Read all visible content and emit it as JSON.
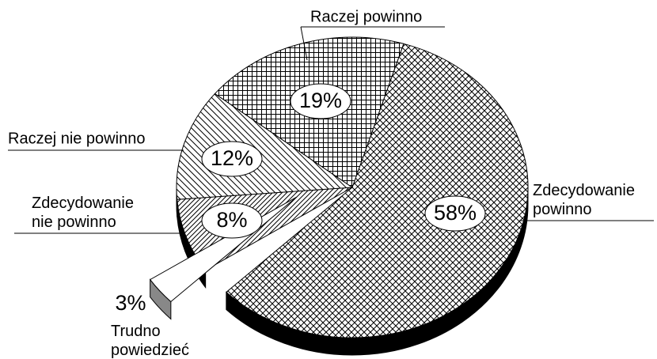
{
  "chart_data": {
    "type": "pie",
    "categories": [
      "Zdecydowanie powinno",
      "Trudno powiedzieć",
      "Zdecydowanie nie powinno",
      "Raczej nie powinno",
      "Raczej powinno"
    ],
    "values": [
      58,
      3,
      8,
      12,
      19
    ],
    "value_labels": [
      "58%",
      "3%",
      "8%",
      "12%",
      "19%"
    ],
    "exploded": "Trudno powiedzieć"
  }
}
